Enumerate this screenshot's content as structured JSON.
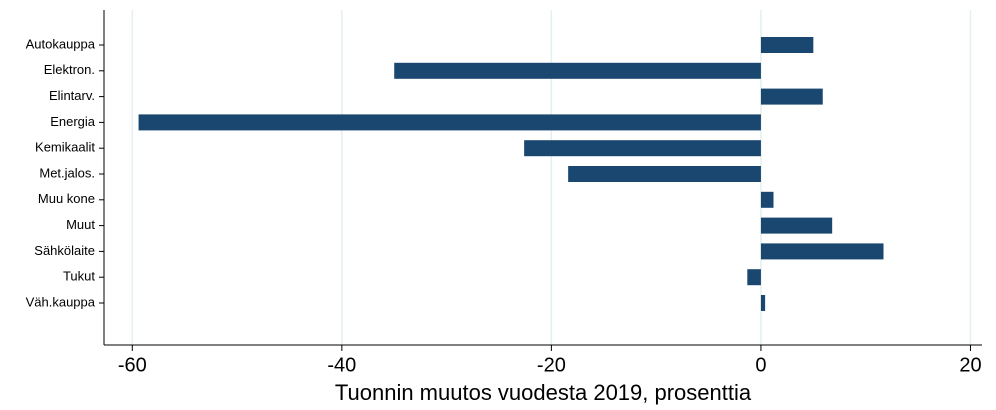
{
  "chart_data": {
    "type": "barh",
    "xlabel": "Tuonnin muutos vuodesta 2019, prosenttia",
    "categories": [
      "Autokauppa",
      "Elektron.",
      "Elintarv.",
      "Energia",
      "Kemikaalit",
      "Met.jalos.",
      "Muu kone",
      "Muut",
      "Sähkölaite",
      "Tukut",
      "Väh.kauppa"
    ],
    "values": [
      5.0,
      -35.0,
      5.9,
      -59.4,
      -22.6,
      -18.4,
      1.2,
      6.8,
      11.7,
      -1.3,
      0.4
    ],
    "color": "#1a476f",
    "xlim": [
      -62.7,
      21.1
    ],
    "xticks": [
      -60,
      -40,
      -20,
      0,
      20
    ],
    "grid": true,
    "grid_color": "#e4efef"
  }
}
